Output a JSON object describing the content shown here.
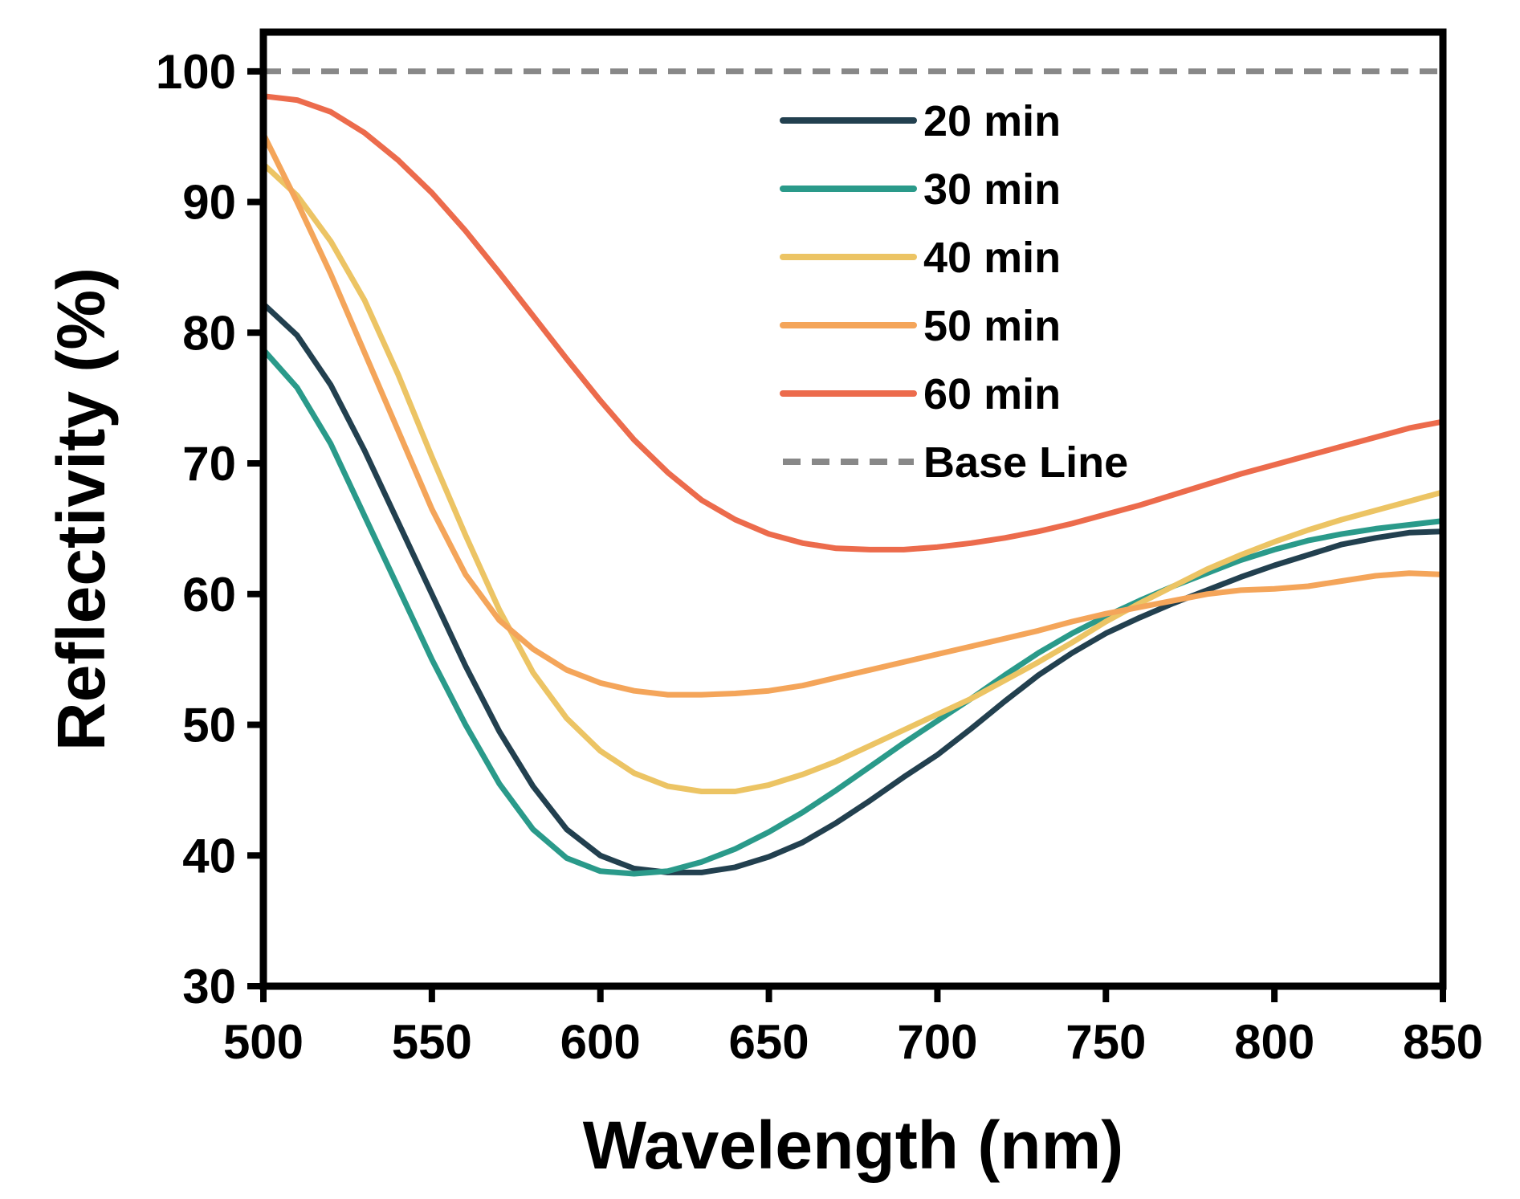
{
  "chart_data": {
    "type": "line",
    "title": "",
    "xlabel": "Wavelength (nm)",
    "ylabel": "Reflectivity (%)",
    "xlim": [
      500,
      850
    ],
    "ylim": [
      30,
      103
    ],
    "xticks": [
      "500",
      "550",
      "600",
      "650",
      "700",
      "750",
      "800",
      "850"
    ],
    "yticks": [
      "30",
      "40",
      "50",
      "60",
      "70",
      "80",
      "90",
      "100"
    ],
    "grid": false,
    "legend_position": "top-right",
    "series": [
      {
        "name": "20 min",
        "color": "#22404f",
        "dashed": false,
        "x": [
          500,
          510,
          520,
          530,
          540,
          550,
          560,
          570,
          580,
          590,
          600,
          610,
          620,
          630,
          640,
          650,
          660,
          670,
          680,
          690,
          700,
          710,
          720,
          730,
          740,
          750,
          760,
          770,
          780,
          790,
          800,
          810,
          820,
          830,
          840,
          850
        ],
        "y": [
          82.2,
          79.8,
          76.0,
          71.0,
          65.5,
          60.0,
          54.5,
          49.5,
          45.3,
          42.0,
          40.0,
          39.0,
          38.7,
          38.7,
          39.1,
          39.9,
          41.0,
          42.5,
          44.2,
          46.0,
          47.7,
          49.7,
          51.8,
          53.8,
          55.5,
          57.0,
          58.2,
          59.3,
          60.3,
          61.3,
          62.2,
          63.0,
          63.8,
          64.3,
          64.7,
          64.8
        ]
      },
      {
        "name": "30 min",
        "color": "#2a9a8a",
        "dashed": false,
        "x": [
          500,
          510,
          520,
          530,
          540,
          550,
          560,
          570,
          580,
          590,
          600,
          610,
          620,
          630,
          640,
          650,
          660,
          670,
          680,
          690,
          700,
          710,
          720,
          730,
          740,
          750,
          760,
          770,
          780,
          790,
          800,
          810,
          820,
          830,
          840,
          850
        ],
        "y": [
          78.7,
          75.8,
          71.5,
          66.0,
          60.5,
          55.0,
          50.0,
          45.5,
          42.0,
          39.8,
          38.8,
          38.6,
          38.8,
          39.5,
          40.5,
          41.8,
          43.3,
          45.0,
          46.8,
          48.6,
          50.3,
          52.0,
          53.8,
          55.5,
          57.0,
          58.3,
          59.5,
          60.6,
          61.6,
          62.6,
          63.4,
          64.1,
          64.6,
          65.0,
          65.3,
          65.6
        ]
      },
      {
        "name": "40 min",
        "color": "#ecc464",
        "dashed": false,
        "x": [
          500,
          510,
          520,
          530,
          540,
          550,
          560,
          570,
          580,
          590,
          600,
          610,
          620,
          630,
          640,
          650,
          660,
          670,
          680,
          690,
          700,
          710,
          720,
          730,
          740,
          750,
          760,
          770,
          780,
          790,
          800,
          810,
          820,
          830,
          840,
          850
        ],
        "y": [
          92.9,
          90.5,
          87.0,
          82.5,
          76.8,
          70.5,
          64.5,
          58.8,
          54.0,
          50.5,
          48.0,
          46.3,
          45.3,
          44.9,
          44.9,
          45.4,
          46.2,
          47.2,
          48.4,
          49.6,
          50.8,
          52.0,
          53.4,
          54.8,
          56.3,
          57.9,
          59.3,
          60.6,
          61.9,
          63.0,
          64.0,
          64.9,
          65.7,
          66.4,
          67.1,
          67.8
        ]
      },
      {
        "name": "50 min",
        "color": "#f4a55a",
        "dashed": false,
        "x": [
          500,
          510,
          520,
          530,
          540,
          550,
          560,
          570,
          580,
          590,
          600,
          610,
          620,
          630,
          640,
          650,
          660,
          670,
          680,
          690,
          700,
          710,
          720,
          730,
          740,
          750,
          760,
          770,
          780,
          790,
          800,
          810,
          820,
          830,
          840,
          850
        ],
        "y": [
          95.2,
          90.0,
          84.5,
          78.5,
          72.5,
          66.5,
          61.5,
          58.0,
          55.8,
          54.2,
          53.2,
          52.6,
          52.3,
          52.3,
          52.4,
          52.6,
          53.0,
          53.6,
          54.2,
          54.8,
          55.4,
          56.0,
          56.6,
          57.2,
          57.9,
          58.5,
          59.0,
          59.5,
          60.0,
          60.3,
          60.4,
          60.6,
          61.0,
          61.4,
          61.6,
          61.5
        ]
      },
      {
        "name": "60 min",
        "color": "#ec6b4c",
        "dashed": false,
        "x": [
          500,
          510,
          520,
          530,
          540,
          550,
          560,
          570,
          580,
          590,
          600,
          610,
          620,
          630,
          640,
          650,
          660,
          670,
          680,
          690,
          700,
          710,
          720,
          730,
          740,
          750,
          760,
          770,
          780,
          790,
          800,
          810,
          820,
          830,
          840,
          850
        ],
        "y": [
          98.1,
          97.8,
          96.9,
          95.3,
          93.2,
          90.7,
          87.8,
          84.6,
          81.3,
          78.0,
          74.8,
          71.8,
          69.3,
          67.2,
          65.7,
          64.6,
          63.9,
          63.5,
          63.4,
          63.4,
          63.6,
          63.9,
          64.3,
          64.8,
          65.4,
          66.1,
          66.8,
          67.6,
          68.4,
          69.2,
          69.9,
          70.6,
          71.3,
          72.0,
          72.7,
          73.2
        ]
      },
      {
        "name": "Base Line",
        "color": "#888888",
        "dashed": true,
        "x": [
          500,
          850
        ],
        "y": [
          100,
          100
        ]
      }
    ]
  }
}
